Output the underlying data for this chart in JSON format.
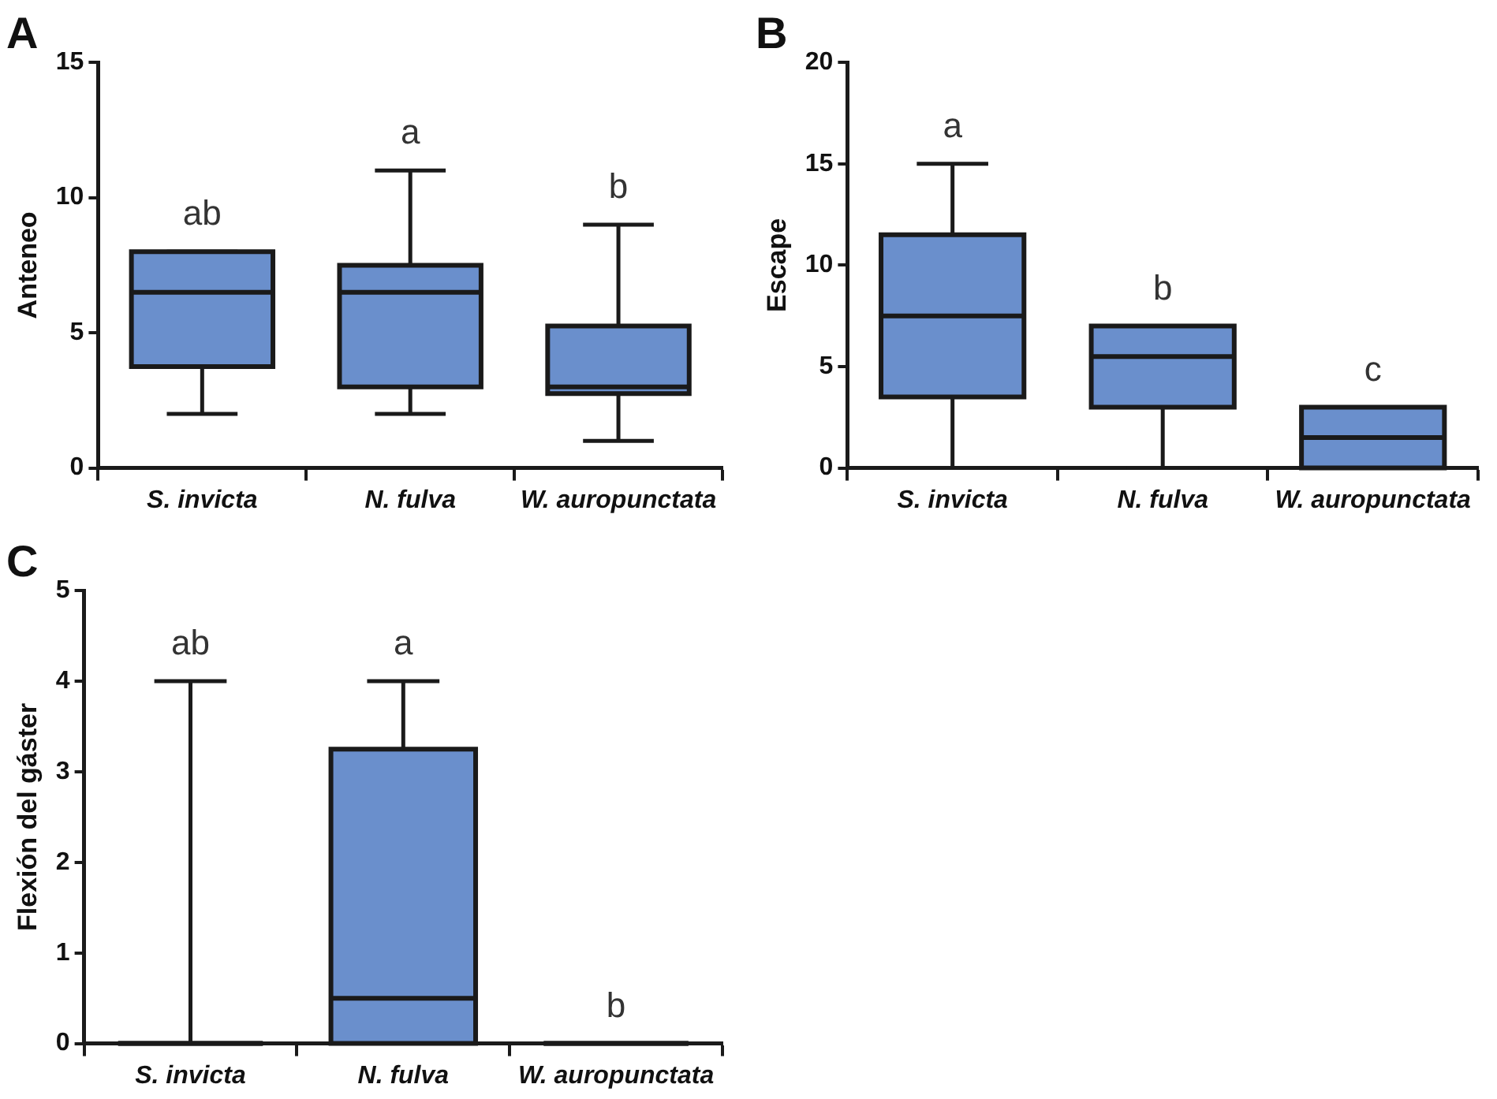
{
  "chart_data": [
    {
      "type": "box",
      "title": "A",
      "ylabel": "Anteneo",
      "categories": [
        "S. invicta",
        "N. fulva",
        "W. auropunctata"
      ],
      "color": "#6a8fcc",
      "ylim": [
        0,
        15
      ],
      "yticks": [
        0,
        5,
        10,
        15
      ],
      "boxes": [
        {
          "low": 2,
          "q1": 3.75,
          "median": 6.5,
          "q3": 8,
          "high": 8
        },
        {
          "low": 2,
          "q1": 3,
          "median": 6.5,
          "q3": 7.5,
          "high": 11
        },
        {
          "low": 1,
          "q1": 2.75,
          "median": 3,
          "q3": 5.25,
          "high": 9
        }
      ],
      "annotations": [
        "ab",
        "a",
        "b"
      ]
    },
    {
      "type": "box",
      "title": "B",
      "ylabel": "Escape",
      "categories": [
        "S. invicta",
        "N. fulva",
        "W. auropunctata"
      ],
      "color": "#6a8fcc",
      "ylim": [
        0,
        20
      ],
      "yticks": [
        0,
        5,
        10,
        15,
        20
      ],
      "boxes": [
        {
          "low": 0,
          "q1": 3.5,
          "median": 7.5,
          "q3": 11.5,
          "high": 15
        },
        {
          "low": 0,
          "q1": 3,
          "median": 5.5,
          "q3": 7,
          "high": 7
        },
        {
          "low": 0,
          "q1": 0,
          "median": 1.5,
          "q3": 3,
          "high": 3
        }
      ],
      "annotations": [
        "a",
        "b",
        "c"
      ]
    },
    {
      "type": "box",
      "title": "C",
      "ylabel": "Flexión del gáster",
      "categories": [
        "S. invicta",
        "N. fulva",
        "W. auropunctata"
      ],
      "colors": [
        "#1a1a1a",
        "#6a8fcc",
        "#1a1a1a"
      ],
      "ylim": [
        0,
        5
      ],
      "yticks": [
        0,
        1,
        2,
        3,
        4,
        5
      ],
      "boxes": [
        {
          "low": 0,
          "q1": 0,
          "median": 0,
          "q3": 0,
          "high": 4
        },
        {
          "low": 0,
          "q1": 0,
          "median": 0.5,
          "q3": 3.25,
          "high": 4
        },
        {
          "low": 0,
          "q1": 0,
          "median": 0,
          "q3": 0,
          "high": 0
        }
      ],
      "annotations": [
        "ab",
        "a",
        "b"
      ]
    }
  ]
}
